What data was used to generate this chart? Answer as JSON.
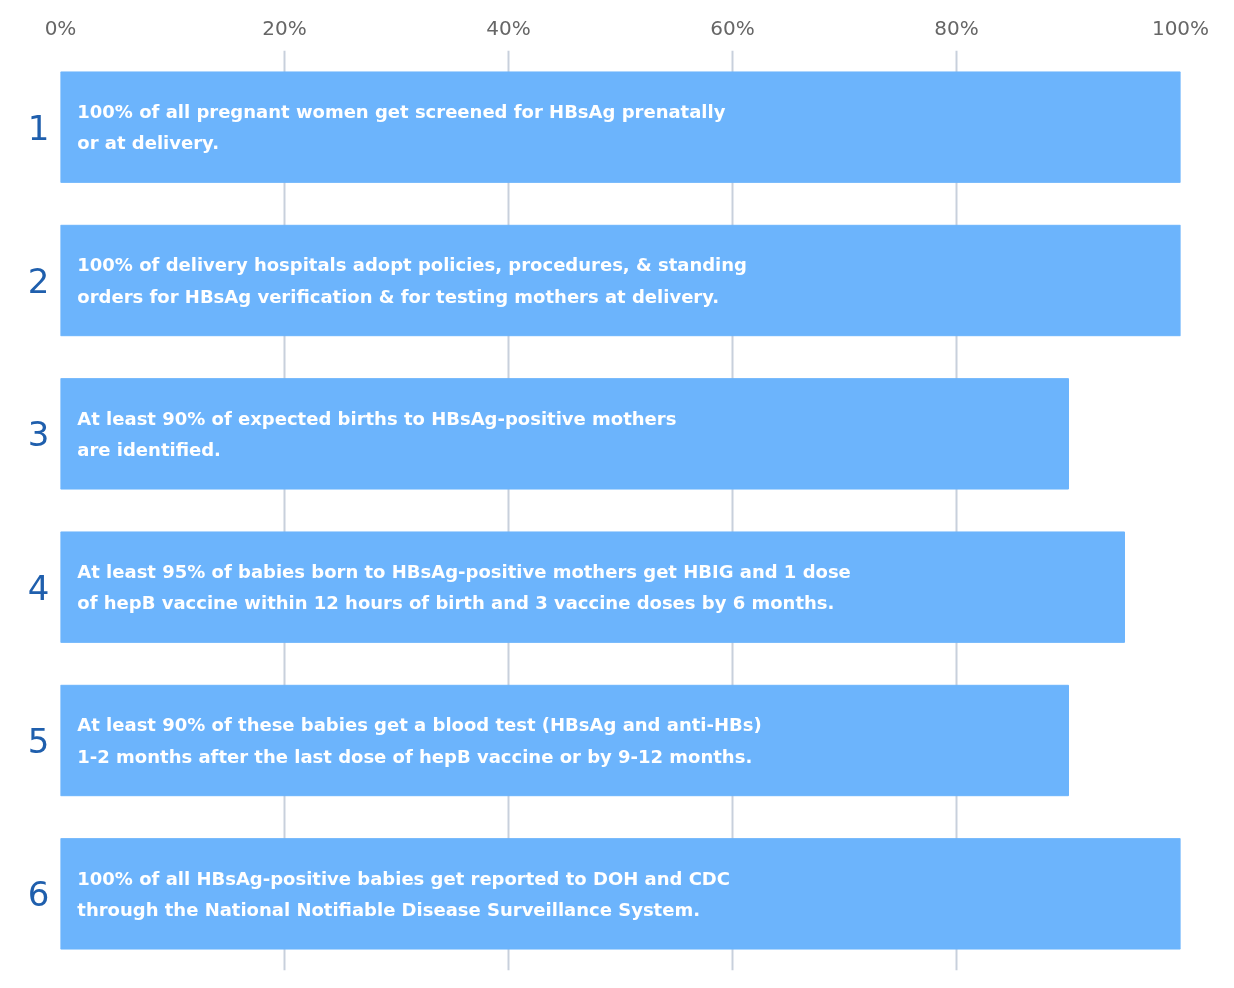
{
  "chart_data": {
    "type": "bar",
    "orientation": "horizontal",
    "categories": [
      "1",
      "2",
      "3",
      "4",
      "5",
      "6"
    ],
    "values": [
      100,
      100,
      90,
      95,
      90,
      100
    ],
    "color": "#6cb4fc",
    "xlim": [
      0,
      100
    ],
    "xticks": [
      {
        "value": 0,
        "label": "0%"
      },
      {
        "value": 20,
        "label": "20%"
      },
      {
        "value": 40,
        "label": "40%"
      },
      {
        "value": 60,
        "label": "60%"
      },
      {
        "value": 80,
        "label": "80%"
      },
      {
        "value": 100,
        "label": "100%"
      }
    ],
    "grid": "x",
    "annotations": [
      "100% of all pregnant women get screened for HBsAg prenatally\nor at delivery.",
      "100% of delivery hospitals adopt policies, procedures, & standing\norders for HBsAg verification & for testing mothers at delivery.",
      "At least 90% of expected births to HBsAg-positive mothers\nare identified.",
      "At least 95% of babies born to HBsAg-positive mothers get HBIG and 1 dose\nof hepB vaccine within 12 hours of birth and 3 vaccine doses by 6 months.",
      "At least 90% of these babies get a blood test (HBsAg and anti-HBs)\n1-2 months after the last dose of hepB vaccine or by 9-12 months.",
      "100% of all HBsAg-positive babies get reported to DOH and CDC\nthrough the National Notifiable Disease Surveillance System."
    ]
  }
}
